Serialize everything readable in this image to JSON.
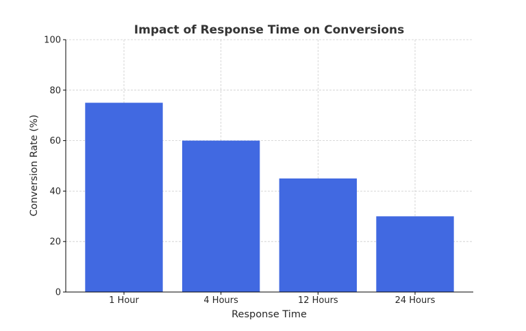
{
  "chart_data": {
    "type": "bar",
    "title": "Impact of Response Time on Conversions",
    "xlabel": "Response Time",
    "ylabel": "Conversion Rate (%)",
    "categories": [
      "1 Hour",
      "4 Hours",
      "12 Hours",
      "24 Hours"
    ],
    "values": [
      75,
      60,
      45,
      30
    ],
    "ylim": [
      0,
      100
    ],
    "yticks": [
      0,
      20,
      40,
      60,
      80,
      100
    ],
    "grid": true,
    "bar_color": "#4169e1"
  }
}
